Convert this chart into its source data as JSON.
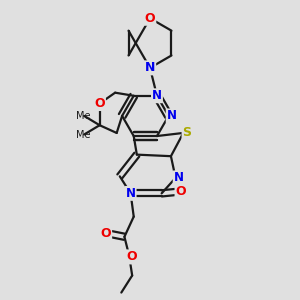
{
  "bg_color": "#e0e0e0",
  "bond_color": "#1a1a1a",
  "bond_width": 1.6,
  "atom_colors": {
    "N": "#0000ee",
    "O": "#ee0000",
    "S": "#aaaa00",
    "C": "#1a1a1a"
  }
}
